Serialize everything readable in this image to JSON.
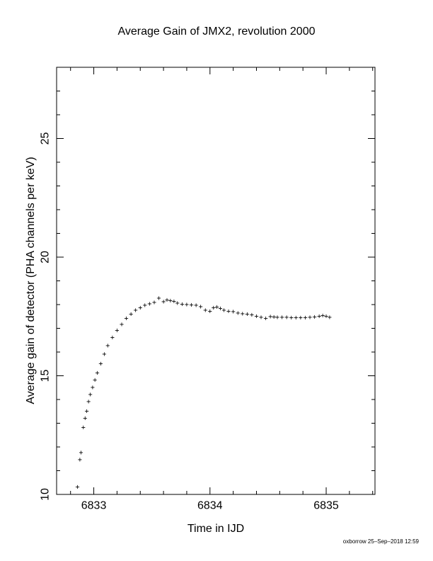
{
  "chart_data": {
    "type": "scatter",
    "title": "Average Gain of JMX2, revolution 2000",
    "xlabel": "Time in IJD",
    "ylabel": "Average gain of detector (PHA channels per keV)",
    "xlim": [
      6832.68,
      6835.42
    ],
    "ylim": [
      10,
      28
    ],
    "xticks": [
      6833,
      6834,
      6835
    ],
    "yticks": [
      10,
      15,
      20,
      25
    ],
    "grid": false,
    "marker": "+",
    "x": [
      6832.86,
      6832.88,
      6832.89,
      6832.91,
      6832.925,
      6832.94,
      6832.955,
      6832.97,
      6832.99,
      6833.01,
      6833.03,
      6833.06,
      6833.09,
      6833.12,
      6833.16,
      6833.2,
      6833.24,
      6833.28,
      6833.32,
      6833.36,
      6833.4,
      6833.44,
      6833.48,
      6833.52,
      6833.56,
      6833.6,
      6833.63,
      6833.66,
      6833.69,
      6833.72,
      6833.76,
      6833.8,
      6833.84,
      6833.88,
      6833.92,
      6833.96,
      6834.0,
      6834.03,
      6834.06,
      6834.09,
      6834.12,
      6834.16,
      6834.2,
      6834.24,
      6834.28,
      6834.32,
      6834.36,
      6834.4,
      6834.44,
      6834.48,
      6834.52,
      6834.55,
      6834.58,
      6834.62,
      6834.66,
      6834.7,
      6834.74,
      6834.78,
      6834.82,
      6834.86,
      6834.9,
      6834.94,
      6834.97,
      6835.0,
      6835.03
    ],
    "y": [
      10.3,
      11.45,
      11.75,
      12.8,
      13.2,
      13.5,
      13.9,
      14.2,
      14.5,
      14.8,
      15.1,
      15.5,
      15.9,
      16.25,
      16.6,
      16.9,
      17.15,
      17.4,
      17.58,
      17.75,
      17.85,
      17.95,
      18.02,
      18.08,
      18.25,
      18.1,
      18.18,
      18.15,
      18.12,
      18.05,
      18.0,
      17.98,
      17.97,
      17.95,
      17.9,
      17.75,
      17.7,
      17.85,
      17.88,
      17.82,
      17.75,
      17.7,
      17.68,
      17.63,
      17.6,
      17.58,
      17.55,
      17.5,
      17.45,
      17.4,
      17.48,
      17.47,
      17.45,
      17.45,
      17.45,
      17.44,
      17.43,
      17.43,
      17.44,
      17.45,
      17.46,
      17.5,
      17.52,
      17.5,
      17.45
    ],
    "footer_note": "oxborrow 25–Sep–2018 12:59"
  }
}
